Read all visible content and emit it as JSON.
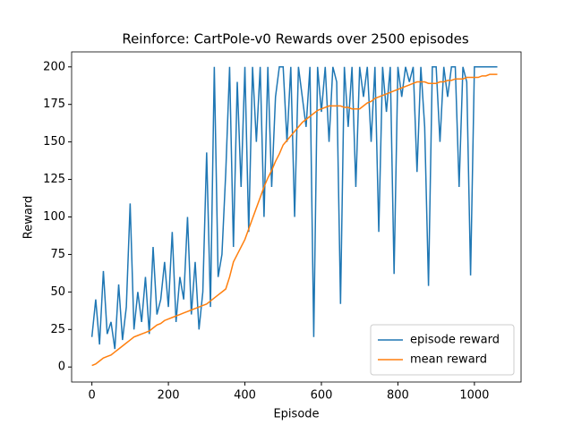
{
  "chart_data": {
    "type": "line",
    "title": "Reinforce: CartPole-v0 Rewards over 2500 episodes",
    "x_label": "Episode",
    "y_label": "Reward",
    "x": [
      0,
      10,
      20,
      30,
      40,
      50,
      60,
      70,
      80,
      90,
      100,
      110,
      120,
      130,
      140,
      150,
      160,
      170,
      180,
      190,
      200,
      210,
      220,
      230,
      240,
      250,
      260,
      270,
      280,
      290,
      300,
      310,
      320,
      330,
      340,
      350,
      360,
      370,
      380,
      390,
      400,
      410,
      420,
      430,
      440,
      450,
      460,
      470,
      480,
      490,
      500,
      510,
      520,
      530,
      540,
      550,
      560,
      570,
      580,
      590,
      600,
      610,
      620,
      630,
      640,
      650,
      660,
      670,
      680,
      690,
      700,
      710,
      720,
      730,
      740,
      750,
      760,
      770,
      780,
      790,
      800,
      810,
      820,
      830,
      840,
      850,
      860,
      870,
      880,
      890,
      900,
      910,
      920,
      930,
      940,
      950,
      960,
      970,
      980,
      990,
      1000,
      1010,
      1020,
      1030,
      1040,
      1050,
      1060
    ],
    "series": [
      {
        "name": "episode reward",
        "color": "#1f77b4",
        "values": [
          20,
          45,
          15,
          64,
          22,
          30,
          12,
          55,
          18,
          40,
          109,
          25,
          50,
          30,
          60,
          22,
          80,
          35,
          45,
          70,
          40,
          90,
          30,
          60,
          45,
          100,
          35,
          70,
          25,
          50,
          143,
          40,
          200,
          60,
          75,
          130,
          200,
          80,
          190,
          120,
          200,
          90,
          200,
          150,
          200,
          100,
          200,
          120,
          180,
          200,
          200,
          150,
          200,
          100,
          200,
          180,
          160,
          200,
          20,
          200,
          170,
          200,
          150,
          200,
          190,
          42,
          200,
          160,
          200,
          120,
          200,
          180,
          200,
          150,
          200,
          90,
          200,
          170,
          200,
          62,
          200,
          180,
          200,
          190,
          200,
          130,
          200,
          160,
          54,
          200,
          200,
          150,
          200,
          180,
          200,
          200,
          120,
          200,
          190,
          61,
          200,
          200,
          200,
          200,
          200,
          200,
          200
        ]
      },
      {
        "name": "mean reward",
        "color": "#ff7f0e",
        "values": [
          1,
          2,
          4,
          6,
          7,
          8,
          10,
          12,
          14,
          16,
          18,
          20,
          21,
          22,
          23,
          24,
          26,
          28,
          29,
          31,
          32,
          33,
          34,
          35,
          36,
          37,
          38,
          39,
          40,
          41,
          42,
          44,
          46,
          48,
          50,
          52,
          60,
          70,
          75,
          80,
          85,
          92,
          99,
          106,
          113,
          120,
          126,
          131,
          137,
          142,
          148,
          151,
          154,
          157,
          160,
          163,
          165,
          167,
          169,
          171,
          172,
          173,
          174,
          174,
          174,
          174,
          173,
          173,
          172,
          172,
          172,
          174,
          176,
          177,
          179,
          180,
          181,
          182,
          183,
          184,
          185,
          186,
          187,
          188,
          189,
          190,
          190,
          190,
          189,
          189,
          189,
          190,
          190,
          191,
          191,
          192,
          192,
          192,
          193,
          193,
          193,
          193,
          194,
          194,
          195,
          195,
          195
        ]
      }
    ],
    "xlim": [
      -53,
      1122
    ],
    "ylim": [
      -10,
      210
    ],
    "xticks": [
      0,
      200,
      400,
      600,
      800,
      1000
    ],
    "yticks": [
      0,
      25,
      50,
      75,
      100,
      125,
      150,
      175,
      200
    ],
    "legend": "lower right"
  }
}
